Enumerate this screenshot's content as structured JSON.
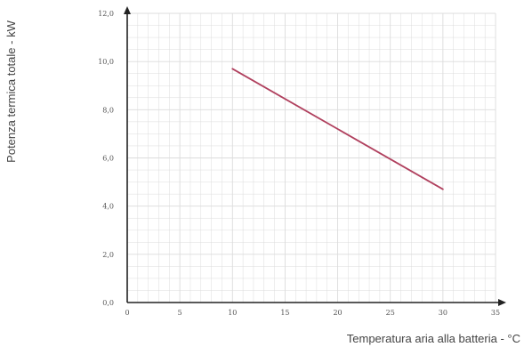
{
  "chart_data": {
    "type": "line",
    "xlabel": "Temperatura aria alla batteria - °C",
    "ylabel": "Potenza termica totale - kW",
    "xlim": [
      0,
      35
    ],
    "ylim": [
      0,
      12
    ],
    "x_ticks": [
      "0",
      "5",
      "10",
      "15",
      "20",
      "25",
      "30",
      "35"
    ],
    "y_ticks": [
      "0,0",
      "2,0",
      "4,0",
      "6,0",
      "8,0",
      "10,0",
      "12,0"
    ],
    "grid": true,
    "series": [
      {
        "x": [
          10,
          30
        ],
        "values": [
          9.7,
          4.7
        ]
      }
    ],
    "colors": {
      "line": "#b0405e",
      "grid": "#dcdcdc",
      "axis": "#222222"
    }
  }
}
